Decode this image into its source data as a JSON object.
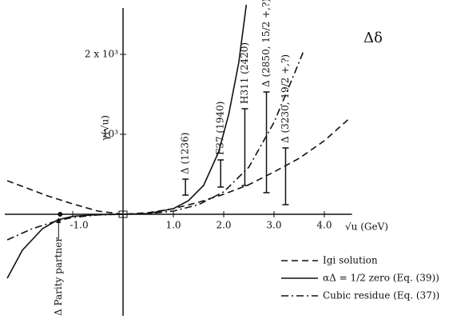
{
  "chart_data": {
    "type": "line",
    "corner_label": "Δδ",
    "xlabel": "√u (GeV)",
    "ylabel": "γ(√u)",
    "xlim": [
      -2.35,
      4.55
    ],
    "ylim": [
      -1320,
      2680
    ],
    "xticks": [
      {
        "value": -1,
        "label": "-1.0"
      },
      {
        "value": 1,
        "label": "1.0"
      },
      {
        "value": 2,
        "label": "2.0"
      },
      {
        "value": 3,
        "label": "3.0"
      },
      {
        "value": 4,
        "label": "4.0"
      }
    ],
    "yticks": [
      {
        "value": 1000,
        "label": "10³"
      },
      {
        "value": 2000,
        "label": "2 x 10³"
      }
    ],
    "grid": false,
    "legend": "lower right",
    "series": [
      {
        "name": "Igi solution",
        "style": "dashed",
        "color": "#111",
        "x": [
          -2.3,
          -1.5,
          -1,
          -0.5,
          0,
          0.5,
          1,
          1.5,
          2,
          2.5,
          3,
          3.5,
          4,
          4.5
        ],
        "values": [
          420,
          230,
          130,
          40,
          0,
          20,
          70,
          150,
          250,
          370,
          530,
          700,
          920,
          1200
        ]
      },
      {
        "name": "αΔ = 1/2 zero (Eq. (39))",
        "style": "solid",
        "color": "#111",
        "x": [
          -2.3,
          -2,
          -1.6,
          -1.3,
          -1,
          -0.5,
          0,
          0.5,
          1,
          1.3,
          1.6,
          1.9,
          2.1,
          2.3,
          2.45
        ],
        "values": [
          -800,
          -450,
          -180,
          -70,
          -25,
          -5,
          0,
          10,
          70,
          170,
          360,
          780,
          1250,
          1900,
          2620
        ]
      },
      {
        "name": "Cubic residue (Eq. (37))",
        "style": "dashdot",
        "color": "#111",
        "x": [
          -2.3,
          -1.8,
          -1.3,
          -1,
          -0.5,
          0,
          0.5,
          1,
          1.5,
          2,
          2.5,
          3,
          3.3,
          3.6
        ],
        "values": [
          -320,
          -180,
          -80,
          -40,
          -8,
          0,
          8,
          40,
          120,
          280,
          590,
          1150,
          1600,
          2060
        ]
      }
    ],
    "resonances": [
      {
        "label": "Δ (1236)",
        "x": 1.24,
        "low": 240,
        "high": 440
      },
      {
        "label": "F37 (1940)",
        "x": 1.94,
        "low": 340,
        "high": 680
      },
      {
        "label": "H311 (2420)",
        "x": 2.42,
        "low": 360,
        "high": 1320
      },
      {
        "label": "Δ (2850, 15/2 +,?)",
        "x": 2.85,
        "low": 270,
        "high": 1530
      },
      {
        "label": "Δ (3230, 19/2 +,?)",
        "x": 3.23,
        "low": 120,
        "high": 830
      }
    ],
    "parity_partner": {
      "label": "Δ Parity partner",
      "x": -1.25,
      "value": 0
    }
  }
}
